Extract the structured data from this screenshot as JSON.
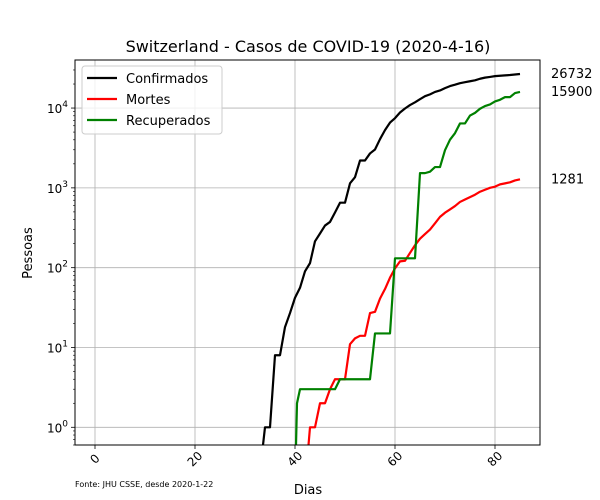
{
  "chart_data": {
    "type": "line",
    "title": "Switzerland - Casos de COVID-19 (2020-4-16)",
    "xlabel": "Dias",
    "ylabel": "Pessoas",
    "yscale": "log",
    "xlim": [
      -4,
      89
    ],
    "ylim": [
      0.6,
      40000
    ],
    "xticks": [
      0,
      20,
      40,
      60,
      80
    ],
    "yticks": [
      {
        "value": 1,
        "base": "10",
        "exp": "0"
      },
      {
        "value": 10,
        "base": "10",
        "exp": "1"
      },
      {
        "value": 100,
        "base": "10",
        "exp": "2"
      },
      {
        "value": 1000,
        "base": "10",
        "exp": "3"
      },
      {
        "value": 10000,
        "base": "10",
        "exp": "4"
      }
    ],
    "grid": true,
    "legend_position": "top-left",
    "source_note": "Fonte: JHU CSSE, desde 2020-1-22",
    "end_labels": [
      "26732",
      "15900",
      "1281"
    ],
    "series": [
      {
        "name": "Confirmados",
        "color": "#000000",
        "end_value": 26732,
        "points": [
          [
            33.6,
            0.6
          ],
          [
            34,
            1
          ],
          [
            35,
            1
          ],
          [
            36,
            8
          ],
          [
            37,
            8
          ],
          [
            38,
            18
          ],
          [
            39,
            27
          ],
          [
            40,
            42
          ],
          [
            41,
            56
          ],
          [
            42,
            90
          ],
          [
            43,
            114
          ],
          [
            44,
            214
          ],
          [
            45,
            268
          ],
          [
            46,
            337
          ],
          [
            47,
            374
          ],
          [
            48,
            491
          ],
          [
            49,
            652
          ],
          [
            50,
            652
          ],
          [
            51,
            1139
          ],
          [
            52,
            1359
          ],
          [
            53,
            2200
          ],
          [
            54,
            2200
          ],
          [
            55,
            2700
          ],
          [
            56,
            3028
          ],
          [
            57,
            4075
          ],
          [
            58,
            5294
          ],
          [
            59,
            6575
          ],
          [
            60,
            7474
          ],
          [
            61,
            8795
          ],
          [
            62,
            9877
          ],
          [
            63,
            10897
          ],
          [
            64,
            11811
          ],
          [
            65,
            12928
          ],
          [
            66,
            14076
          ],
          [
            67,
            14829
          ],
          [
            68,
            15922
          ],
          [
            69,
            16605
          ],
          [
            70,
            17768
          ],
          [
            71,
            18827
          ],
          [
            72,
            19606
          ],
          [
            73,
            20505
          ],
          [
            74,
            21100
          ],
          [
            75,
            21657
          ],
          [
            76,
            22253
          ],
          [
            77,
            23280
          ],
          [
            78,
            24051
          ],
          [
            79,
            24551
          ],
          [
            80,
            25107
          ],
          [
            81,
            25415
          ],
          [
            82,
            25688
          ],
          [
            83,
            25936
          ],
          [
            84,
            26336
          ],
          [
            85,
            26732
          ]
        ]
      },
      {
        "name": "Mortes",
        "color": "#ff0000",
        "end_value": 1281,
        "points": [
          [
            42.7,
            0.6
          ],
          [
            43,
            1
          ],
          [
            44,
            1
          ],
          [
            45,
            2
          ],
          [
            46,
            2
          ],
          [
            47,
            3
          ],
          [
            48,
            4
          ],
          [
            49,
            4
          ],
          [
            50,
            4
          ],
          [
            51,
            11
          ],
          [
            52,
            13
          ],
          [
            53,
            14
          ],
          [
            54,
            14
          ],
          [
            55,
            27
          ],
          [
            56,
            28
          ],
          [
            57,
            41
          ],
          [
            58,
            54
          ],
          [
            59,
            75
          ],
          [
            60,
            98
          ],
          [
            61,
            120
          ],
          [
            62,
            122
          ],
          [
            63,
            153
          ],
          [
            64,
            191
          ],
          [
            65,
            231
          ],
          [
            66,
            264
          ],
          [
            67,
            300
          ],
          [
            68,
            359
          ],
          [
            69,
            433
          ],
          [
            70,
            488
          ],
          [
            71,
            536
          ],
          [
            72,
            591
          ],
          [
            73,
            666
          ],
          [
            74,
            715
          ],
          [
            75,
            765
          ],
          [
            76,
            821
          ],
          [
            77,
            895
          ],
          [
            78,
            948
          ],
          [
            79,
            1002
          ],
          [
            80,
            1036
          ],
          [
            81,
            1106
          ],
          [
            82,
            1138
          ],
          [
            83,
            1174
          ],
          [
            84,
            1239
          ],
          [
            85,
            1281
          ]
        ]
      },
      {
        "name": "Recuperados",
        "color": "#008000",
        "end_value": 15900,
        "points": [
          [
            40.2,
            0.6
          ],
          [
            40.4,
            2
          ],
          [
            41,
            3
          ],
          [
            42,
            3
          ],
          [
            43,
            3
          ],
          [
            44,
            3
          ],
          [
            45,
            3
          ],
          [
            46,
            3
          ],
          [
            47,
            3
          ],
          [
            48,
            3
          ],
          [
            49,
            4
          ],
          [
            50,
            4
          ],
          [
            51,
            4
          ],
          [
            52,
            4
          ],
          [
            53,
            4
          ],
          [
            54,
            4
          ],
          [
            55,
            4
          ],
          [
            56,
            15
          ],
          [
            57,
            15
          ],
          [
            58,
            15
          ],
          [
            59,
            15
          ],
          [
            60,
            131
          ],
          [
            61,
            131
          ],
          [
            62,
            131
          ],
          [
            63,
            131
          ],
          [
            64,
            131
          ],
          [
            65,
            1530
          ],
          [
            66,
            1530
          ],
          [
            67,
            1595
          ],
          [
            68,
            1823
          ],
          [
            69,
            1823
          ],
          [
            70,
            2967
          ],
          [
            71,
            4013
          ],
          [
            72,
            4846
          ],
          [
            73,
            6415
          ],
          [
            74,
            6415
          ],
          [
            75,
            8056
          ],
          [
            76,
            8704
          ],
          [
            77,
            9800
          ],
          [
            78,
            10600
          ],
          [
            79,
            11100
          ],
          [
            80,
            12100
          ],
          [
            81,
            12700
          ],
          [
            82,
            13700
          ],
          [
            83,
            13700
          ],
          [
            84,
            15400
          ],
          [
            85,
            15900
          ]
        ]
      }
    ]
  }
}
